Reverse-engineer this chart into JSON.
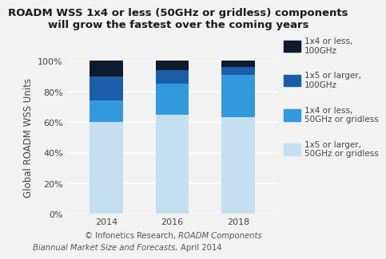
{
  "title_line1": "ROADM WSS 1x4 or less (50GHz or gridless) components",
  "title_line2": "will grow the fastest over the coming years",
  "years": [
    "2014",
    "2016",
    "2018"
  ],
  "series": {
    "1x5_larger_50": [
      0.6,
      0.65,
      0.63
    ],
    "1x4_less_50": [
      0.14,
      0.2,
      0.28
    ],
    "1x5_larger_100": [
      0.16,
      0.09,
      0.05
    ],
    "1x4_less_100": [
      0.1,
      0.06,
      0.04
    ]
  },
  "legend_labels": {
    "1x4_less_100": "1x4 or less,\n100GHz",
    "1x5_larger_100": "1x5 or larger,\n100GHz",
    "1x4_less_50": "1x4 or less,\n50GHz or gridless",
    "1x5_larger_50": "1x5 or larger,\n50GHz or gridless"
  },
  "colors": {
    "1x5_larger_50": "#C5DFF0",
    "1x4_less_50": "#3399DD",
    "1x5_larger_100": "#1A5EA8",
    "1x4_less_100": "#0D1B2E"
  },
  "ylabel": "Global ROADM WSS Units",
  "ylim": [
    0,
    1.0
  ],
  "yticks": [
    0.0,
    0.2,
    0.4,
    0.6,
    0.8,
    1.0
  ],
  "ytick_labels": [
    "0%",
    "20%",
    "40%",
    "60%",
    "80%",
    "100%"
  ],
  "bg_color": "#F2F2F2",
  "bar_width": 0.5,
  "title_fontsize": 9.5,
  "legend_fontsize": 7.5,
  "axis_label_fontsize": 8.5,
  "tick_fontsize": 8.0,
  "caption_fontsize": 7.2
}
